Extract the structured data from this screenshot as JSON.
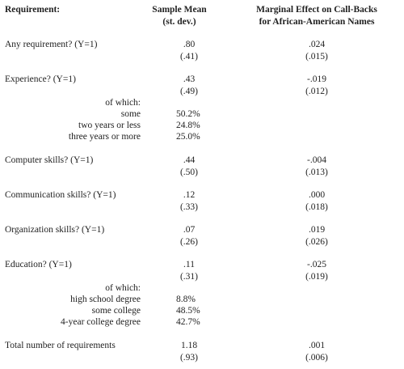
{
  "header": {
    "requirement": "Requirement:",
    "sample_mean": [
      "Sample Mean",
      "(st. dev.)"
    ],
    "marginal_effect": [
      "Marginal Effect on Call-Backs",
      "for African-American Names"
    ]
  },
  "rows": [
    {
      "label": "Any requirement? (Y=1)",
      "mean": ".80",
      "sd": "(.41)",
      "effect": ".024",
      "effect_se": "(.015)"
    },
    {
      "label": "Experience? (Y=1)",
      "mean": ".43",
      "sd": "(.49)",
      "effect": "-.019",
      "effect_se": "(.012)"
    },
    {
      "label": "of which:",
      "items": [
        {
          "label": "some",
          "share": "50.2%"
        },
        {
          "label": "two years or less",
          "share": "24.8%"
        },
        {
          "label": "three years or more",
          "share": "25.0%"
        }
      ]
    },
    {
      "label": "Computer skills? (Y=1)",
      "mean": ".44",
      "sd": "(.50)",
      "effect": "-.004",
      "effect_se": "(.013)"
    },
    {
      "label": "Communication skills? (Y=1)",
      "mean": ".12",
      "sd": "(.33)",
      "effect": ".000",
      "effect_se": "(.018)"
    },
    {
      "label": "Organization skills? (Y=1)",
      "mean": ".07",
      "sd": "(.26)",
      "effect": ".019",
      "effect_se": "(.026)"
    },
    {
      "label": "Education? (Y=1)",
      "mean": ".11",
      "sd": "(.31)",
      "effect": "-.025",
      "effect_se": "(.019)"
    },
    {
      "label": "of which:",
      "items": [
        {
          "label": "high school degree",
          "share": "8.8%"
        },
        {
          "label": "some college",
          "share": "48.5%"
        },
        {
          "label": "4-year college degree",
          "share": "42.7%"
        }
      ]
    },
    {
      "label": "Total number of requirements",
      "mean": "1.18",
      "sd": "(.93)",
      "effect": ".001",
      "effect_se": "(.006)"
    }
  ]
}
